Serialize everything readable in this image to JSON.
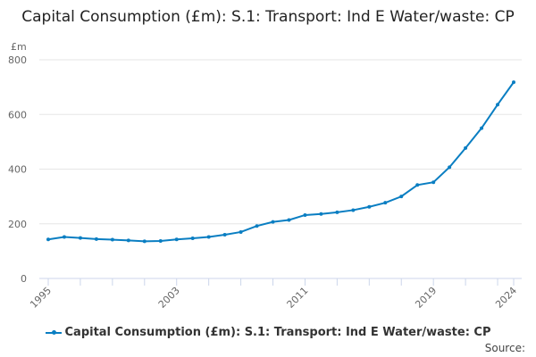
{
  "chart_data": {
    "type": "line",
    "title": "Capital Consumption (£m): S.1: Transport: Ind E Water/waste: CP",
    "ylabel": "£m",
    "xlabel": "",
    "ylim": [
      0,
      800
    ],
    "yticks": [
      "0",
      "200",
      "400",
      "600",
      "800"
    ],
    "xticks": [
      "1995",
      "2003",
      "2011",
      "2019",
      "2024"
    ],
    "grid": true,
    "legend_position": "bottom",
    "x": [
      1995,
      1996,
      1997,
      1998,
      1999,
      2000,
      2001,
      2002,
      2003,
      2004,
      2005,
      2006,
      2007,
      2008,
      2009,
      2010,
      2011,
      2012,
      2013,
      2014,
      2015,
      2016,
      2017,
      2018,
      2019,
      2020,
      2021,
      2022,
      2023,
      2024
    ],
    "series": [
      {
        "name": "Capital Consumption (£m): S.1: Transport: Ind E Water/waste: CP",
        "color": "#0a7ec2",
        "values": [
          143,
          152,
          148,
          144,
          142,
          139,
          136,
          137,
          143,
          147,
          152,
          160,
          170,
          192,
          207,
          214,
          232,
          236,
          242,
          250,
          262,
          277,
          300,
          342,
          352,
          407,
          477,
          550,
          636,
          718
        ]
      }
    ]
  },
  "source_label": "Source:"
}
